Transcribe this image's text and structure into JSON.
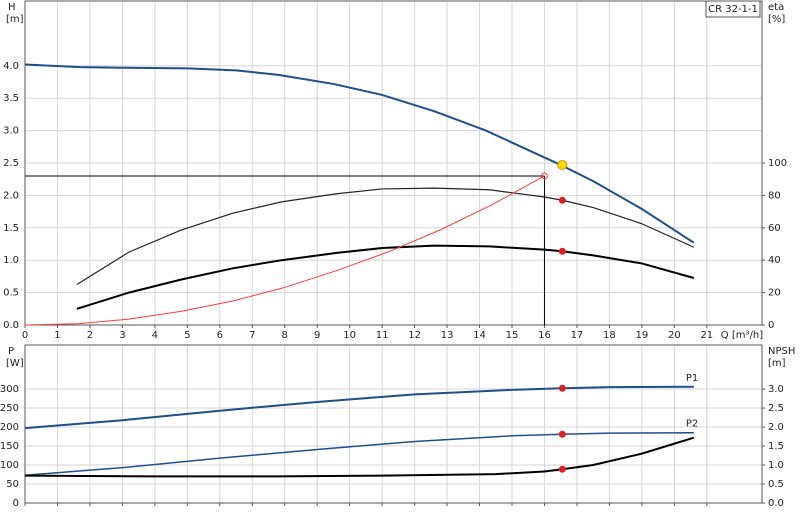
{
  "chart_data": [
    {
      "type": "line",
      "title": "CR 32-1-1",
      "ylabel": "H",
      "yunit": "[m]",
      "y2label": "eta",
      "y2unit": "[%]",
      "xlabel": "Q [m³/h]",
      "xlim": [
        0,
        22.7
      ],
      "xticks": [
        0,
        1,
        2,
        3,
        4,
        5,
        6,
        7,
        8,
        9,
        10,
        11,
        12,
        13,
        14,
        15,
        16,
        17,
        18,
        19,
        20,
        21
      ],
      "ylim": [
        0,
        5
      ],
      "yticks": [
        {
          "value": 0,
          "label": "0.0"
        },
        {
          "value": 0.5,
          "label": "0.5"
        },
        {
          "value": 1,
          "label": "1.0"
        },
        {
          "value": 1.5,
          "label": "1.5"
        },
        {
          "value": 2,
          "label": "2.0"
        },
        {
          "value": 2.5,
          "label": "2.5"
        },
        {
          "value": 3,
          "label": "3.0"
        },
        {
          "value": 3.5,
          "label": "3.5"
        },
        {
          "value": 4,
          "label": "4.0"
        }
      ],
      "y2lim": [
        0,
        200
      ],
      "y2ticks": [
        0,
        20,
        40,
        60,
        80,
        100
      ],
      "grid": true,
      "series": [
        {
          "color": "#1f4e8c",
          "width": 2,
          "x": [
            0,
            1.7,
            3,
            5,
            6.5,
            7.8,
            9.5,
            11,
            12.6,
            14.2,
            15.5,
            16.5,
            17.5,
            19,
            20.6
          ],
          "values": [
            4.02,
            3.98,
            3.97,
            3.96,
            3.93,
            3.86,
            3.72,
            3.55,
            3.3,
            3.0,
            2.7,
            2.47,
            2.22,
            1.79,
            1.27
          ]
        },
        {
          "color": "#222222",
          "width": 1.2,
          "axis": "y2",
          "x": [
            1.6,
            3.2,
            4.8,
            6.4,
            7.9,
            9.6,
            11,
            12.6,
            14.3,
            16,
            16.55,
            17.5,
            19,
            20.6
          ],
          "values": [
            25,
            45,
            58.5,
            69,
            76,
            81,
            84,
            84.5,
            83.5,
            79,
            77,
            72.5,
            62.5,
            48
          ]
        },
        {
          "color": "#000000",
          "width": 2,
          "axis": "y2",
          "x": [
            1.6,
            3.2,
            4.8,
            6.4,
            7.9,
            9.6,
            11,
            12.6,
            14.3,
            16,
            16.55,
            17.5,
            19,
            20.6
          ],
          "values": [
            10,
            20,
            28,
            35,
            40,
            44.5,
            47.5,
            49,
            48.5,
            46.5,
            45.5,
            43,
            38,
            29
          ]
        },
        {
          "color": "#ff3b3b",
          "width": 1,
          "x": [
            0,
            1.6,
            3.2,
            4.8,
            6.4,
            8,
            9.6,
            11.2,
            12.8,
            14.4,
            16
          ],
          "values": [
            0,
            0.02,
            0.09,
            0.21,
            0.37,
            0.58,
            0.84,
            1.13,
            1.47,
            1.86,
            2.3
          ]
        }
      ],
      "duty_point": {
        "x": 16,
        "y": 2.3
      },
      "markers": [
        {
          "x": 16.55,
          "y": 2.47,
          "color": "#ffd700"
        },
        {
          "x": 16.55,
          "y": 77,
          "axis": "y2",
          "color": "#e02020"
        },
        {
          "x": 16.55,
          "y": 45.5,
          "axis": "y2",
          "color": "#e02020"
        }
      ]
    },
    {
      "type": "line",
      "ylabel": "P",
      "yunit": "[W]",
      "y2label": "NPSH",
      "y2unit": "[m]",
      "xlim": [
        0,
        22.7
      ],
      "xticks": [
        0,
        1,
        2,
        3,
        4,
        5,
        6,
        7,
        8,
        9,
        10,
        11,
        12,
        13,
        14,
        15,
        16,
        17,
        18,
        19,
        20,
        21
      ],
      "ylim": [
        0,
        416
      ],
      "yticks": [
        0,
        50,
        100,
        150,
        200,
        250,
        300
      ],
      "y2lim": [
        0,
        4.16
      ],
      "y2ticks": [
        {
          "value": 0,
          "label": "0.0"
        },
        {
          "value": 0.5,
          "label": "0.5"
        },
        {
          "value": 1,
          "label": "1.0"
        },
        {
          "value": 1.5,
          "label": "1.5"
        },
        {
          "value": 2,
          "label": "2.0"
        },
        {
          "value": 2.5,
          "label": "2.5"
        },
        {
          "value": 3,
          "label": "3.0"
        }
      ],
      "grid": true,
      "series": [
        {
          "name": "P1",
          "color": "#1f4e8c",
          "width": 2,
          "x": [
            0,
            3,
            6,
            9,
            12,
            15,
            16.55,
            18,
            20.6
          ],
          "values": [
            197,
            218,
            243,
            266,
            286,
            298,
            302,
            305,
            306
          ]
        },
        {
          "name": "P2",
          "color": "#1f4e8c",
          "width": 1.5,
          "x": [
            0,
            3,
            6,
            9,
            12,
            15,
            16.55,
            18,
            20.6
          ],
          "values": [
            73,
            93,
            118,
            141,
            162,
            177,
            181,
            184,
            185
          ]
        },
        {
          "color": "#000000",
          "width": 2,
          "axis": "y2",
          "x": [
            0,
            4,
            7.8,
            11,
            14.5,
            16,
            16.55,
            17.5,
            19,
            20.6
          ],
          "values": [
            0.72,
            0.7,
            0.7,
            0.72,
            0.76,
            0.83,
            0.89,
            1.0,
            1.3,
            1.72
          ]
        }
      ],
      "markers": [
        {
          "x": 16.55,
          "y": 302,
          "color": "#e02020"
        },
        {
          "x": 16.55,
          "y": 181,
          "color": "#e02020"
        },
        {
          "x": 16.55,
          "y": 0.89,
          "axis": "y2",
          "color": "#e02020"
        }
      ]
    }
  ]
}
